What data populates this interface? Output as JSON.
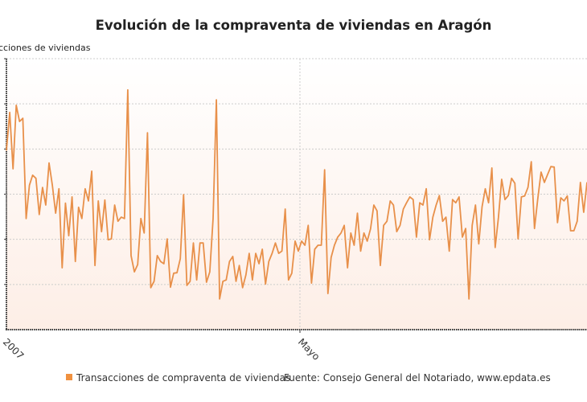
{
  "chart_data": {
    "type": "line",
    "title": "Evolución de la compraventa de viviendas en Aragón",
    "ylabel": "cciones de viviendas",
    "xlabel": "",
    "x_tick_labels": [
      "2007",
      "Mayo"
    ],
    "y_gridlines": 6,
    "ylim": [
      0,
      6
    ],
    "y_units_note_hidden": true,
    "grid": true,
    "legend_placement": "bottom",
    "series": [
      {
        "name": "Transacciones de compraventa de viviendas",
        "color": "#e8904a",
        "values": [
          3.97,
          4.81,
          3.56,
          4.97,
          4.61,
          4.68,
          2.46,
          3.2,
          3.42,
          3.35,
          2.55,
          3.15,
          2.76,
          3.69,
          3.2,
          2.58,
          3.12,
          1.37,
          2.8,
          2.08,
          2.94,
          1.51,
          2.71,
          2.46,
          3.12,
          2.85,
          3.51,
          1.42,
          2.85,
          2.17,
          2.87,
          1.99,
          2.01,
          2.76,
          2.4,
          2.49,
          2.46,
          5.31,
          1.64,
          1.28,
          1.44,
          2.46,
          2.14,
          4.36,
          0.93,
          1.07,
          1.64,
          1.51,
          1.46,
          2.01,
          0.94,
          1.25,
          1.26,
          1.57,
          2.99,
          0.98,
          1.07,
          1.92,
          1.1,
          1.92,
          1.92,
          1.05,
          1.28,
          2.46,
          5.09,
          0.68,
          1.07,
          1.1,
          1.51,
          1.62,
          1.07,
          1.42,
          0.93,
          1.21,
          1.69,
          1.1,
          1.69,
          1.46,
          1.78,
          1.01,
          1.51,
          1.69,
          1.92,
          1.69,
          1.74,
          2.67,
          1.1,
          1.25,
          1.96,
          1.74,
          1.96,
          1.87,
          2.31,
          1.03,
          1.78,
          1.87,
          1.87,
          3.54,
          0.8,
          1.6,
          1.87,
          2.05,
          2.14,
          2.31,
          1.37,
          2.14,
          1.87,
          2.58,
          1.74,
          2.14,
          1.96,
          2.23,
          2.76,
          2.63,
          1.42,
          2.31,
          2.4,
          2.85,
          2.76,
          2.17,
          2.31,
          2.67,
          2.81,
          2.94,
          2.88,
          2.05,
          2.81,
          2.76,
          3.12,
          1.99,
          2.49,
          2.76,
          2.97,
          2.4,
          2.49,
          1.74,
          2.88,
          2.81,
          2.94,
          2.05,
          2.24,
          0.68,
          2.31,
          2.76,
          1.9,
          2.72,
          3.12,
          2.81,
          3.58,
          1.82,
          2.49,
          3.33,
          2.88,
          2.97,
          3.35,
          3.24,
          2.01,
          2.94,
          2.96,
          3.15,
          3.72,
          2.24,
          2.9,
          3.49,
          3.26,
          3.44,
          3.61,
          3.6,
          2.37,
          2.92,
          2.85,
          2.96,
          2.19,
          2.19,
          2.4,
          3.26,
          2.6,
          3.26
        ]
      }
    ],
    "source": "Fuente: Consejo General del Notariado, www.epdata.es",
    "colors": {
      "line": "#e8904a",
      "legend": "#f0913f"
    }
  }
}
